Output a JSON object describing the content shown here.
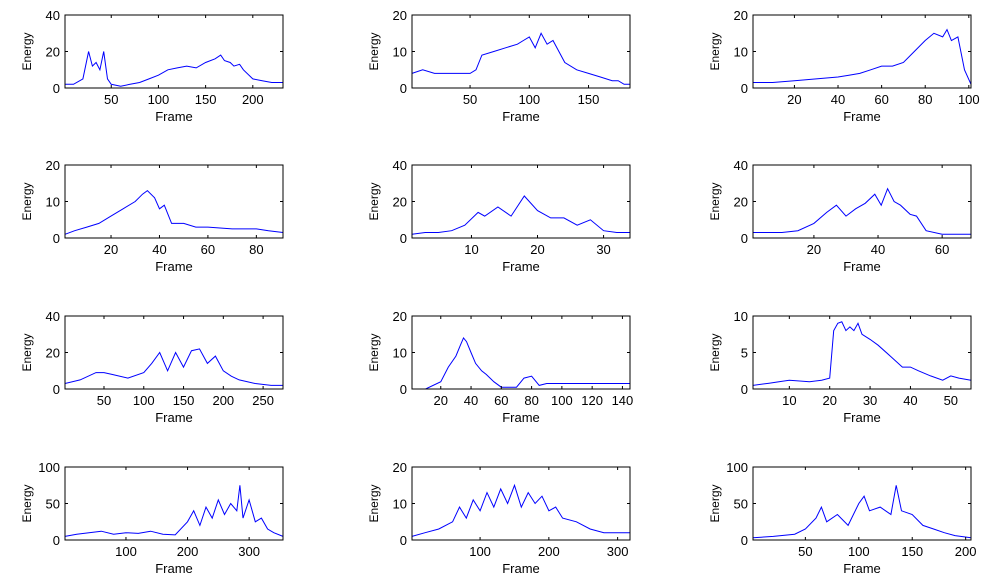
{
  "figure": {
    "background": "#ffffff",
    "line_color": "#0000ff",
    "axis_color": "#000000"
  },
  "chart_data": [
    {
      "type": "line",
      "xlabel": "Frame",
      "ylabel": "Energy",
      "xlim": [
        1,
        232
      ],
      "ylim": [
        0,
        40
      ],
      "xticks": [
        50,
        100,
        150,
        200
      ],
      "yticks": [
        0,
        20,
        40
      ],
      "series": [
        {
          "x": [
            1,
            10,
            20,
            26,
            30,
            34,
            38,
            42,
            46,
            50,
            60,
            70,
            80,
            90,
            100,
            110,
            120,
            130,
            140,
            150,
            160,
            166,
            170,
            176,
            180,
            186,
            190,
            200,
            210,
            220,
            232
          ],
          "y": [
            2,
            2,
            5,
            20,
            12,
            14,
            10,
            20,
            5,
            2,
            1,
            2,
            3,
            5,
            7,
            10,
            11,
            12,
            11,
            14,
            16,
            18,
            15,
            14,
            12,
            13,
            10,
            5,
            4,
            3,
            3
          ]
        }
      ]
    },
    {
      "type": "line",
      "xlabel": "Frame",
      "ylabel": "Energy",
      "xlim": [
        1,
        185
      ],
      "ylim": [
        0,
        20
      ],
      "xticks": [
        50,
        100,
        150
      ],
      "yticks": [
        0,
        10,
        20
      ],
      "series": [
        {
          "x": [
            1,
            10,
            20,
            30,
            40,
            50,
            55,
            60,
            70,
            80,
            90,
            95,
            100,
            105,
            110,
            115,
            120,
            125,
            130,
            140,
            150,
            160,
            170,
            175,
            180,
            185
          ],
          "y": [
            4,
            5,
            4,
            4,
            4,
            4,
            5,
            9,
            10,
            11,
            12,
            13,
            14,
            11,
            15,
            12,
            13,
            10,
            7,
            5,
            4,
            3,
            2,
            2,
            1,
            1
          ]
        }
      ]
    },
    {
      "type": "line",
      "xlabel": "Frame",
      "ylabel": "Energy",
      "xlim": [
        1,
        101
      ],
      "ylim": [
        0,
        20
      ],
      "xticks": [
        20,
        40,
        60,
        80,
        100
      ],
      "yticks": [
        0,
        10,
        20
      ],
      "series": [
        {
          "x": [
            1,
            10,
            20,
            30,
            40,
            45,
            50,
            55,
            60,
            65,
            70,
            75,
            80,
            84,
            88,
            90,
            92,
            95,
            98,
            101
          ],
          "y": [
            1.5,
            1.5,
            2,
            2.5,
            3,
            3.5,
            4,
            5,
            6,
            6,
            7,
            10,
            13,
            15,
            14,
            16,
            13,
            14,
            5,
            1
          ]
        }
      ]
    },
    {
      "type": "line",
      "xlabel": "Frame",
      "ylabel": "Energy",
      "xlim": [
        1,
        91
      ],
      "ylim": [
        0,
        20
      ],
      "xticks": [
        20,
        40,
        60,
        80
      ],
      "yticks": [
        0,
        10,
        20
      ],
      "series": [
        {
          "x": [
            1,
            5,
            10,
            15,
            20,
            25,
            30,
            33,
            35,
            38,
            40,
            42,
            45,
            50,
            55,
            60,
            70,
            80,
            85,
            91
          ],
          "y": [
            1,
            2,
            3,
            4,
            6,
            8,
            10,
            12,
            13,
            11,
            8,
            9,
            4,
            4,
            3,
            3,
            2.5,
            2.5,
            2,
            1.5
          ]
        }
      ]
    },
    {
      "type": "line",
      "xlabel": "Frame",
      "ylabel": "Energy",
      "xlim": [
        1,
        34
      ],
      "ylim": [
        0,
        40
      ],
      "xticks": [
        10,
        20,
        30
      ],
      "yticks": [
        0,
        20,
        40
      ],
      "series": [
        {
          "x": [
            1,
            3,
            5,
            7,
            9,
            11,
            12,
            14,
            16,
            18,
            20,
            22,
            24,
            26,
            28,
            30,
            32,
            34
          ],
          "y": [
            2,
            3,
            3,
            4,
            7,
            14,
            12,
            17,
            12,
            23,
            15,
            11,
            11,
            7,
            10,
            4,
            3,
            3
          ]
        }
      ]
    },
    {
      "type": "line",
      "xlabel": "Frame",
      "ylabel": "Energy",
      "xlim": [
        1,
        69
      ],
      "ylim": [
        0,
        40
      ],
      "xticks": [
        20,
        40,
        60
      ],
      "yticks": [
        0,
        20,
        40
      ],
      "series": [
        {
          "x": [
            1,
            5,
            10,
            15,
            20,
            24,
            27,
            30,
            33,
            36,
            39,
            41,
            43,
            45,
            47,
            50,
            52,
            55,
            60,
            65,
            69
          ],
          "y": [
            3,
            3,
            3,
            4,
            8,
            14,
            18,
            12,
            16,
            19,
            24,
            18,
            27,
            20,
            18,
            13,
            12,
            4,
            2,
            2,
            2
          ]
        }
      ]
    },
    {
      "type": "line",
      "xlabel": "Frame",
      "ylabel": "Energy",
      "xlim": [
        1,
        275
      ],
      "ylim": [
        0,
        40
      ],
      "xticks": [
        50,
        100,
        150,
        200,
        250
      ],
      "yticks": [
        0,
        20,
        40
      ],
      "series": [
        {
          "x": [
            1,
            20,
            40,
            50,
            60,
            80,
            100,
            110,
            120,
            130,
            140,
            150,
            160,
            170,
            180,
            190,
            200,
            210,
            220,
            240,
            260,
            275
          ],
          "y": [
            3,
            5,
            9,
            9,
            8,
            6,
            9,
            14,
            20,
            10,
            20,
            12,
            21,
            22,
            14,
            18,
            10,
            7,
            5,
            3,
            2,
            2
          ]
        }
      ]
    },
    {
      "type": "line",
      "xlabel": "Frame",
      "ylabel": "Energy",
      "xlim": [
        1,
        145
      ],
      "ylim": [
        0,
        20
      ],
      "xticks": [
        20,
        40,
        60,
        80,
        100,
        120,
        140
      ],
      "yticks": [
        0,
        10,
        20
      ],
      "series": [
        {
          "x": [
            1,
            10,
            20,
            25,
            30,
            33,
            35,
            37,
            40,
            43,
            47,
            50,
            55,
            60,
            65,
            70,
            75,
            80,
            85,
            90,
            100,
            110,
            120,
            130,
            145
          ],
          "y": [
            0,
            0,
            2,
            6,
            9,
            12,
            14,
            13,
            10,
            7,
            5,
            4,
            2,
            0.5,
            0.5,
            0.5,
            3,
            3.5,
            1,
            1.5,
            1.5,
            1.5,
            1.5,
            1.5,
            1.5
          ]
        }
      ]
    },
    {
      "type": "line",
      "xlabel": "Frame",
      "ylabel": "Energy",
      "xlim": [
        1,
        55
      ],
      "ylim": [
        0,
        10
      ],
      "xticks": [
        10,
        20,
        30,
        40,
        50
      ],
      "yticks": [
        0,
        5,
        10
      ],
      "series": [
        {
          "x": [
            1,
            5,
            10,
            15,
            18,
            20,
            21,
            22,
            23,
            24,
            25,
            26,
            27,
            28,
            30,
            32,
            35,
            38,
            40,
            42,
            45,
            48,
            50,
            52,
            55
          ],
          "y": [
            0.5,
            0.8,
            1.2,
            1,
            1.2,
            1.5,
            8,
            9,
            9.2,
            8,
            8.5,
            8,
            9,
            7.5,
            6.8,
            6,
            4.5,
            3,
            3,
            2.5,
            1.8,
            1.2,
            1.8,
            1.5,
            1.2
          ]
        }
      ]
    },
    {
      "type": "line",
      "xlabel": "Frame",
      "ylabel": "Energy",
      "xlim": [
        1,
        355
      ],
      "ylim": [
        0,
        100
      ],
      "xticks": [
        100,
        200,
        300
      ],
      "yticks": [
        0,
        50,
        100
      ],
      "series": [
        {
          "x": [
            1,
            20,
            40,
            60,
            80,
            100,
            120,
            140,
            160,
            180,
            200,
            210,
            220,
            230,
            240,
            250,
            260,
            270,
            280,
            285,
            290,
            300,
            310,
            320,
            330,
            340,
            355
          ],
          "y": [
            5,
            8,
            10,
            12,
            8,
            10,
            9,
            12,
            8,
            7,
            25,
            40,
            20,
            45,
            30,
            55,
            35,
            50,
            40,
            75,
            30,
            55,
            25,
            30,
            15,
            10,
            5
          ]
        }
      ]
    },
    {
      "type": "line",
      "xlabel": "Frame",
      "ylabel": "Energy",
      "xlim": [
        1,
        318
      ],
      "ylim": [
        0,
        20
      ],
      "xticks": [
        100,
        200,
        300
      ],
      "yticks": [
        0,
        10,
        20
      ],
      "series": [
        {
          "x": [
            1,
            20,
            40,
            60,
            70,
            80,
            90,
            100,
            110,
            120,
            130,
            140,
            150,
            160,
            170,
            180,
            190,
            200,
            210,
            220,
            240,
            260,
            280,
            300,
            318
          ],
          "y": [
            1,
            2,
            3,
            5,
            9,
            6,
            11,
            8,
            13,
            9,
            14,
            10,
            15,
            9,
            13,
            10,
            12,
            8,
            9,
            6,
            5,
            3,
            2,
            2,
            2
          ]
        }
      ]
    },
    {
      "type": "line",
      "xlabel": "Frame",
      "ylabel": "Energy",
      "xlim": [
        1,
        205
      ],
      "ylim": [
        0,
        100
      ],
      "xticks": [
        50,
        100,
        150,
        200
      ],
      "yticks": [
        0,
        50,
        100
      ],
      "series": [
        {
          "x": [
            1,
            20,
            40,
            50,
            60,
            65,
            70,
            80,
            90,
            100,
            105,
            110,
            120,
            130,
            135,
            140,
            150,
            160,
            170,
            180,
            190,
            205
          ],
          "y": [
            3,
            5,
            8,
            15,
            30,
            45,
            25,
            35,
            20,
            50,
            60,
            40,
            45,
            35,
            75,
            40,
            35,
            20,
            15,
            10,
            6,
            3
          ]
        }
      ]
    }
  ]
}
